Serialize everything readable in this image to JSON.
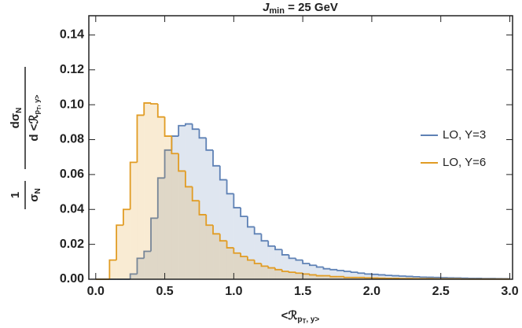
{
  "chart_data": {
    "type": "histogram",
    "title": [
      "J",
      "min",
      " = 25 GeV"
    ],
    "x_label": [
      "<ℛ",
      "p",
      "T",
      ", y>"
    ],
    "y_label": {
      "factor_num": "1",
      "factor_den": [
        "σ",
        "N"
      ],
      "num": [
        "dσ",
        "N"
      ],
      "den": [
        "d <ℛ",
        "p",
        "T",
        ", y>"
      ]
    },
    "bins": [
      0,
      0.05,
      0.1,
      0.15,
      0.2,
      0.25,
      0.3,
      0.35,
      0.4,
      0.45,
      0.5,
      0.55,
      0.6,
      0.65,
      0.7,
      0.75,
      0.8,
      0.85,
      0.9,
      0.95,
      1.0,
      1.05,
      1.1,
      1.15,
      1.2,
      1.25,
      1.3,
      1.35,
      1.4,
      1.45,
      1.5,
      1.55,
      1.6,
      1.65,
      1.7,
      1.75,
      1.8,
      1.85,
      1.9,
      1.95,
      2.0,
      2.05,
      2.1,
      2.15,
      2.2,
      2.25,
      2.3,
      2.35,
      2.4,
      2.45,
      2.5,
      2.55,
      2.6,
      2.65,
      2.7,
      2.75,
      2.8,
      2.85,
      2.9,
      2.95,
      3.0
    ],
    "series": [
      {
        "name": "LO, Y=3",
        "color": "#5e81b5",
        "values": [
          0,
          0,
          0,
          0,
          0,
          0.003,
          0.012,
          0.016,
          0.035,
          0.058,
          0.074,
          0.082,
          0.088,
          0.089,
          0.086,
          0.081,
          0.074,
          0.065,
          0.057,
          0.049,
          0.041,
          0.036,
          0.03,
          0.026,
          0.022,
          0.019,
          0.017,
          0.014,
          0.012,
          0.011,
          0.009,
          0.008,
          0.007,
          0.006,
          0.0055,
          0.005,
          0.0045,
          0.004,
          0.0035,
          0.003,
          0.0028,
          0.0025,
          0.0022,
          0.002,
          0.0018,
          0.0016,
          0.0014,
          0.0012,
          0.0011,
          0.001,
          0.0009,
          0.0008,
          0.0007,
          0.0006,
          0.0005,
          0.0005,
          0.0004,
          0.0004,
          0.0003,
          0.0003
        ]
      },
      {
        "name": "LO, Y=6",
        "color": "#e19c24",
        "values": [
          0,
          0,
          0.011,
          0.031,
          0.04,
          0.067,
          0.094,
          0.101,
          0.1005,
          0.093,
          0.082,
          0.072,
          0.062,
          0.053,
          0.045,
          0.037,
          0.031,
          0.026,
          0.022,
          0.018,
          0.015,
          0.013,
          0.011,
          0.009,
          0.0075,
          0.0065,
          0.0055,
          0.0045,
          0.004,
          0.0035,
          0.003,
          0.0025,
          0.002,
          0.002,
          0.0015,
          0.0015,
          0.001,
          0.001,
          0.001,
          0.0008,
          0.0007,
          0.0006,
          0.0005,
          0.0005,
          0.0004,
          0.0004,
          0.0003,
          0.0003,
          0.0003,
          0.0002,
          0.0002,
          0.0002,
          0.0002,
          0.0001,
          0.0001,
          0.0001,
          0.0001,
          0.0001,
          0.0001,
          0.0001
        ]
      }
    ],
    "xlim": [
      -0.05,
      3.02
    ],
    "ylim": [
      0,
      0.151
    ],
    "xticks": [
      {
        "value": 0,
        "label": "0.0"
      },
      {
        "value": 0.5,
        "label": "0.5"
      },
      {
        "value": 1,
        "label": "1.0"
      },
      {
        "value": 1.5,
        "label": "1.5"
      },
      {
        "value": 2,
        "label": "2.0"
      },
      {
        "value": 2.5,
        "label": "2.5"
      },
      {
        "value": 3,
        "label": "3.0"
      }
    ],
    "yticks": [
      {
        "value": 0,
        "label": "0.00"
      },
      {
        "value": 0.02,
        "label": "0.02"
      },
      {
        "value": 0.04,
        "label": "0.04"
      },
      {
        "value": 0.06,
        "label": "0.06"
      },
      {
        "value": 0.08,
        "label": "0.08"
      },
      {
        "value": 0.1,
        "label": "0.10"
      },
      {
        "value": 0.12,
        "label": "0.12"
      },
      {
        "value": 0.14,
        "label": "0.14"
      }
    ],
    "legend": "right",
    "grid": false
  }
}
